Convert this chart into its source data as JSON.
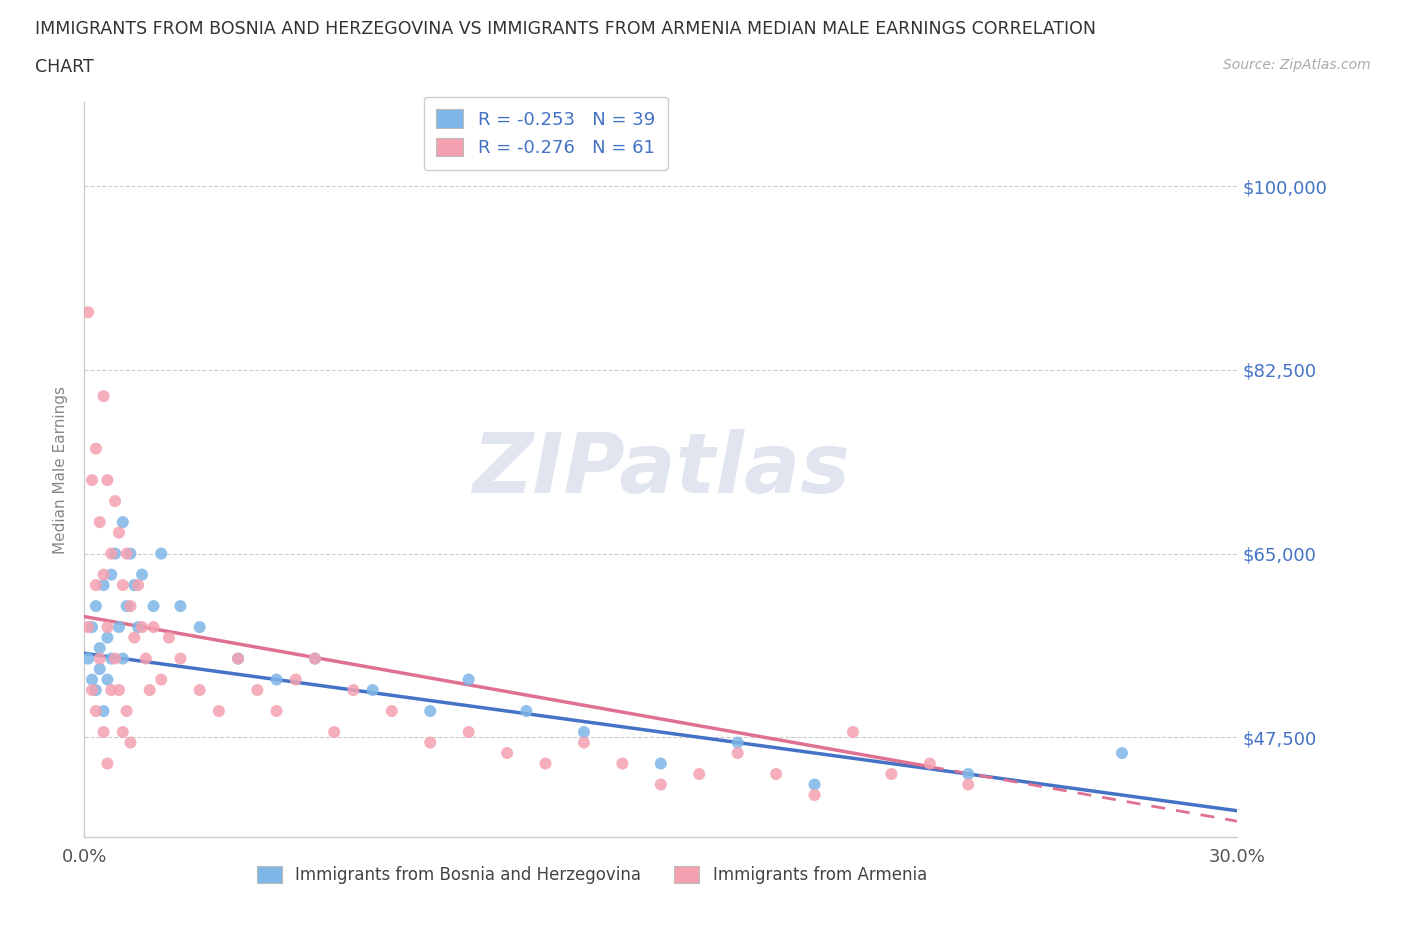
{
  "title_line1": "IMMIGRANTS FROM BOSNIA AND HERZEGOVINA VS IMMIGRANTS FROM ARMENIA MEDIAN MALE EARNINGS CORRELATION",
  "title_line2": "CHART",
  "source": "Source: ZipAtlas.com",
  "ylabel": "Median Male Earnings",
  "xlim": [
    0.0,
    0.3
  ],
  "ylim": [
    38000,
    108000
  ],
  "yticks": [
    47500,
    65000,
    82500,
    100000
  ],
  "ytick_labels": [
    "$47,500",
    "$65,000",
    "$82,500",
    "$100,000"
  ],
  "xticks": [
    0.0,
    0.05,
    0.1,
    0.15,
    0.2,
    0.25,
    0.3
  ],
  "watermark": "ZIPatlas",
  "R_bosnia": -0.253,
  "N_bosnia": 39,
  "R_armenia": -0.276,
  "N_armenia": 61,
  "color_bosnia": "#7EB6E8",
  "color_armenia": "#F4A0B0",
  "color_trendline_bosnia": "#4472C4",
  "color_trendline_armenia": "#E07090",
  "color_blue": "#4472C4",
  "bos_intercept": 55500,
  "bos_slope": -50000,
  "arm_intercept": 59000,
  "arm_slope": -65000,
  "bosnia_x": [
    0.001,
    0.002,
    0.002,
    0.003,
    0.003,
    0.004,
    0.004,
    0.005,
    0.005,
    0.006,
    0.006,
    0.007,
    0.007,
    0.008,
    0.009,
    0.01,
    0.01,
    0.011,
    0.012,
    0.013,
    0.014,
    0.015,
    0.018,
    0.02,
    0.025,
    0.03,
    0.04,
    0.05,
    0.06,
    0.075,
    0.09,
    0.1,
    0.115,
    0.13,
    0.15,
    0.17,
    0.19,
    0.23,
    0.27
  ],
  "bosnia_y": [
    55000,
    53000,
    58000,
    52000,
    60000,
    56000,
    54000,
    62000,
    50000,
    57000,
    53000,
    63000,
    55000,
    65000,
    58000,
    55000,
    68000,
    60000,
    65000,
    62000,
    58000,
    63000,
    60000,
    65000,
    60000,
    58000,
    55000,
    53000,
    55000,
    52000,
    50000,
    53000,
    50000,
    48000,
    45000,
    47000,
    43000,
    44000,
    46000
  ],
  "armenia_x": [
    0.001,
    0.001,
    0.002,
    0.002,
    0.003,
    0.003,
    0.003,
    0.004,
    0.004,
    0.005,
    0.005,
    0.005,
    0.006,
    0.006,
    0.006,
    0.007,
    0.007,
    0.008,
    0.008,
    0.009,
    0.009,
    0.01,
    0.01,
    0.011,
    0.011,
    0.012,
    0.012,
    0.013,
    0.014,
    0.015,
    0.016,
    0.017,
    0.018,
    0.02,
    0.022,
    0.025,
    0.03,
    0.035,
    0.04,
    0.045,
    0.05,
    0.055,
    0.06,
    0.065,
    0.07,
    0.08,
    0.09,
    0.1,
    0.11,
    0.12,
    0.13,
    0.14,
    0.15,
    0.16,
    0.17,
    0.18,
    0.19,
    0.2,
    0.21,
    0.22,
    0.23
  ],
  "armenia_y": [
    88000,
    58000,
    72000,
    52000,
    75000,
    62000,
    50000,
    68000,
    55000,
    80000,
    63000,
    48000,
    72000,
    58000,
    45000,
    65000,
    52000,
    70000,
    55000,
    67000,
    52000,
    62000,
    48000,
    65000,
    50000,
    60000,
    47000,
    57000,
    62000,
    58000,
    55000,
    52000,
    58000,
    53000,
    57000,
    55000,
    52000,
    50000,
    55000,
    52000,
    50000,
    53000,
    55000,
    48000,
    52000,
    50000,
    47000,
    48000,
    46000,
    45000,
    47000,
    45000,
    43000,
    44000,
    46000,
    44000,
    42000,
    48000,
    44000,
    45000,
    43000
  ]
}
